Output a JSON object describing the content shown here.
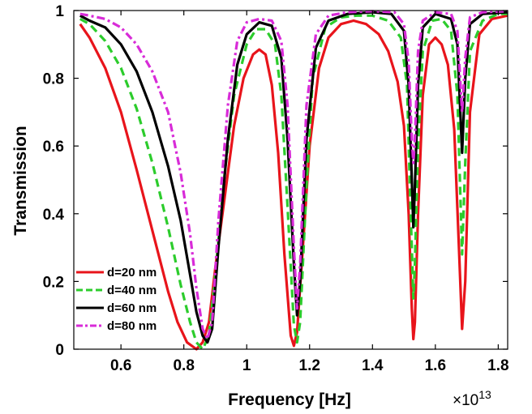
{
  "chart_data": {
    "type": "line",
    "xlabel": "Frequency [Hz]",
    "ylabel": "Transmission",
    "x_exponent": {
      "base": "×10",
      "exp": "13"
    },
    "xlim": [
      0.45,
      1.83
    ],
    "ylim": [
      0,
      1
    ],
    "x_ticks": [
      0.6,
      0.8,
      1.0,
      1.2,
      1.4,
      1.6,
      1.8
    ],
    "x_tick_labels": [
      "0.6",
      "0.8",
      "1",
      "1.2",
      "1.4",
      "1.6",
      "1.8"
    ],
    "y_ticks": [
      0,
      0.2,
      0.4,
      0.6,
      0.8,
      1.0
    ],
    "y_tick_labels": [
      "0",
      "0.2",
      "0.4",
      "0.6",
      "0.8",
      "1"
    ],
    "grid": false,
    "legend_position": "bottom-left",
    "series": [
      {
        "name": "d=20 nm",
        "color": "#e8141b",
        "dash": "solid",
        "points": [
          [
            0.47,
            0.96
          ],
          [
            0.5,
            0.92
          ],
          [
            0.55,
            0.83
          ],
          [
            0.6,
            0.7
          ],
          [
            0.65,
            0.53
          ],
          [
            0.7,
            0.35
          ],
          [
            0.75,
            0.17
          ],
          [
            0.78,
            0.08
          ],
          [
            0.81,
            0.02
          ],
          [
            0.84,
            0.0
          ],
          [
            0.86,
            0.02
          ],
          [
            0.88,
            0.08
          ],
          [
            0.9,
            0.24
          ],
          [
            0.93,
            0.45
          ],
          [
            0.96,
            0.66
          ],
          [
            0.99,
            0.8
          ],
          [
            1.02,
            0.87
          ],
          [
            1.04,
            0.885
          ],
          [
            1.06,
            0.87
          ],
          [
            1.08,
            0.78
          ],
          [
            1.1,
            0.58
          ],
          [
            1.12,
            0.28
          ],
          [
            1.14,
            0.04
          ],
          [
            1.15,
            0.01
          ],
          [
            1.16,
            0.05
          ],
          [
            1.18,
            0.32
          ],
          [
            1.2,
            0.6
          ],
          [
            1.23,
            0.83
          ],
          [
            1.26,
            0.92
          ],
          [
            1.3,
            0.96
          ],
          [
            1.34,
            0.97
          ],
          [
            1.38,
            0.96
          ],
          [
            1.42,
            0.93
          ],
          [
            1.45,
            0.88
          ],
          [
            1.48,
            0.79
          ],
          [
            1.5,
            0.66
          ],
          [
            1.515,
            0.4
          ],
          [
            1.525,
            0.12
          ],
          [
            1.53,
            0.03
          ],
          [
            1.535,
            0.08
          ],
          [
            1.545,
            0.4
          ],
          [
            1.56,
            0.75
          ],
          [
            1.58,
            0.9
          ],
          [
            1.6,
            0.92
          ],
          [
            1.62,
            0.9
          ],
          [
            1.64,
            0.84
          ],
          [
            1.66,
            0.65
          ],
          [
            1.675,
            0.3
          ],
          [
            1.685,
            0.06
          ],
          [
            1.695,
            0.2
          ],
          [
            1.71,
            0.7
          ],
          [
            1.74,
            0.93
          ],
          [
            1.78,
            0.975
          ],
          [
            1.83,
            0.985
          ]
        ]
      },
      {
        "name": "d=40 nm",
        "color": "#2ccc2c",
        "dash": "dashed",
        "points": [
          [
            0.47,
            0.975
          ],
          [
            0.5,
            0.96
          ],
          [
            0.55,
            0.91
          ],
          [
            0.6,
            0.83
          ],
          [
            0.65,
            0.71
          ],
          [
            0.7,
            0.55
          ],
          [
            0.75,
            0.36
          ],
          [
            0.79,
            0.19
          ],
          [
            0.82,
            0.08
          ],
          [
            0.84,
            0.02
          ],
          [
            0.86,
            0.0
          ],
          [
            0.88,
            0.04
          ],
          [
            0.9,
            0.22
          ],
          [
            0.93,
            0.52
          ],
          [
            0.96,
            0.75
          ],
          [
            1.0,
            0.9
          ],
          [
            1.03,
            0.945
          ],
          [
            1.06,
            0.945
          ],
          [
            1.09,
            0.9
          ],
          [
            1.11,
            0.75
          ],
          [
            1.13,
            0.42
          ],
          [
            1.15,
            0.07
          ],
          [
            1.16,
            0.02
          ],
          [
            1.17,
            0.08
          ],
          [
            1.19,
            0.48
          ],
          [
            1.21,
            0.8
          ],
          [
            1.25,
            0.95
          ],
          [
            1.3,
            0.98
          ],
          [
            1.35,
            0.985
          ],
          [
            1.4,
            0.985
          ],
          [
            1.45,
            0.97
          ],
          [
            1.49,
            0.92
          ],
          [
            1.51,
            0.78
          ],
          [
            1.52,
            0.45
          ],
          [
            1.53,
            0.15
          ],
          [
            1.535,
            0.25
          ],
          [
            1.545,
            0.6
          ],
          [
            1.56,
            0.88
          ],
          [
            1.59,
            0.97
          ],
          [
            1.62,
            0.975
          ],
          [
            1.65,
            0.94
          ],
          [
            1.67,
            0.75
          ],
          [
            1.685,
            0.28
          ],
          [
            1.695,
            0.55
          ],
          [
            1.71,
            0.88
          ],
          [
            1.75,
            0.97
          ],
          [
            1.8,
            0.99
          ],
          [
            1.83,
            0.99
          ]
        ]
      },
      {
        "name": "d=60 nm",
        "color": "#000000",
        "dash": "solid",
        "points": [
          [
            0.47,
            0.985
          ],
          [
            0.5,
            0.97
          ],
          [
            0.55,
            0.95
          ],
          [
            0.6,
            0.9
          ],
          [
            0.65,
            0.82
          ],
          [
            0.7,
            0.7
          ],
          [
            0.75,
            0.54
          ],
          [
            0.79,
            0.38
          ],
          [
            0.82,
            0.22
          ],
          [
            0.84,
            0.11
          ],
          [
            0.86,
            0.04
          ],
          [
            0.875,
            0.02
          ],
          [
            0.89,
            0.06
          ],
          [
            0.91,
            0.3
          ],
          [
            0.94,
            0.62
          ],
          [
            0.97,
            0.84
          ],
          [
            1.0,
            0.93
          ],
          [
            1.04,
            0.965
          ],
          [
            1.08,
            0.955
          ],
          [
            1.11,
            0.86
          ],
          [
            1.13,
            0.62
          ],
          [
            1.15,
            0.25
          ],
          [
            1.16,
            0.1
          ],
          [
            1.17,
            0.2
          ],
          [
            1.19,
            0.62
          ],
          [
            1.22,
            0.89
          ],
          [
            1.26,
            0.97
          ],
          [
            1.32,
            0.99
          ],
          [
            1.4,
            0.995
          ],
          [
            1.46,
            0.99
          ],
          [
            1.5,
            0.94
          ],
          [
            1.515,
            0.78
          ],
          [
            1.525,
            0.5
          ],
          [
            1.53,
            0.36
          ],
          [
            1.535,
            0.48
          ],
          [
            1.545,
            0.78
          ],
          [
            1.56,
            0.95
          ],
          [
            1.6,
            0.99
          ],
          [
            1.65,
            0.975
          ],
          [
            1.67,
            0.9
          ],
          [
            1.685,
            0.58
          ],
          [
            1.695,
            0.8
          ],
          [
            1.71,
            0.96
          ],
          [
            1.75,
            0.99
          ],
          [
            1.83,
            0.995
          ]
        ]
      },
      {
        "name": "d=80 nm",
        "color": "#d82bd8",
        "dash": "dashdot",
        "points": [
          [
            0.47,
            0.99
          ],
          [
            0.5,
            0.985
          ],
          [
            0.55,
            0.975
          ],
          [
            0.6,
            0.95
          ],
          [
            0.65,
            0.9
          ],
          [
            0.7,
            0.82
          ],
          [
            0.75,
            0.7
          ],
          [
            0.79,
            0.52
          ],
          [
            0.82,
            0.34
          ],
          [
            0.84,
            0.18
          ],
          [
            0.86,
            0.06
          ],
          [
            0.875,
            0.03
          ],
          [
            0.89,
            0.08
          ],
          [
            0.91,
            0.38
          ],
          [
            0.94,
            0.72
          ],
          [
            0.97,
            0.91
          ],
          [
            1.0,
            0.965
          ],
          [
            1.04,
            0.975
          ],
          [
            1.08,
            0.97
          ],
          [
            1.11,
            0.91
          ],
          [
            1.13,
            0.72
          ],
          [
            1.15,
            0.3
          ],
          [
            1.16,
            0.12
          ],
          [
            1.17,
            0.25
          ],
          [
            1.19,
            0.72
          ],
          [
            1.22,
            0.93
          ],
          [
            1.26,
            0.985
          ],
          [
            1.32,
            0.995
          ],
          [
            1.4,
            0.998
          ],
          [
            1.47,
            0.995
          ],
          [
            1.5,
            0.96
          ],
          [
            1.515,
            0.85
          ],
          [
            1.525,
            0.62
          ],
          [
            1.53,
            0.55
          ],
          [
            1.535,
            0.62
          ],
          [
            1.545,
            0.88
          ],
          [
            1.56,
            0.97
          ],
          [
            1.6,
            0.995
          ],
          [
            1.65,
            0.99
          ],
          [
            1.67,
            0.94
          ],
          [
            1.685,
            0.7
          ],
          [
            1.695,
            0.86
          ],
          [
            1.71,
            0.98
          ],
          [
            1.75,
            0.995
          ],
          [
            1.83,
            0.998
          ]
        ]
      }
    ]
  }
}
